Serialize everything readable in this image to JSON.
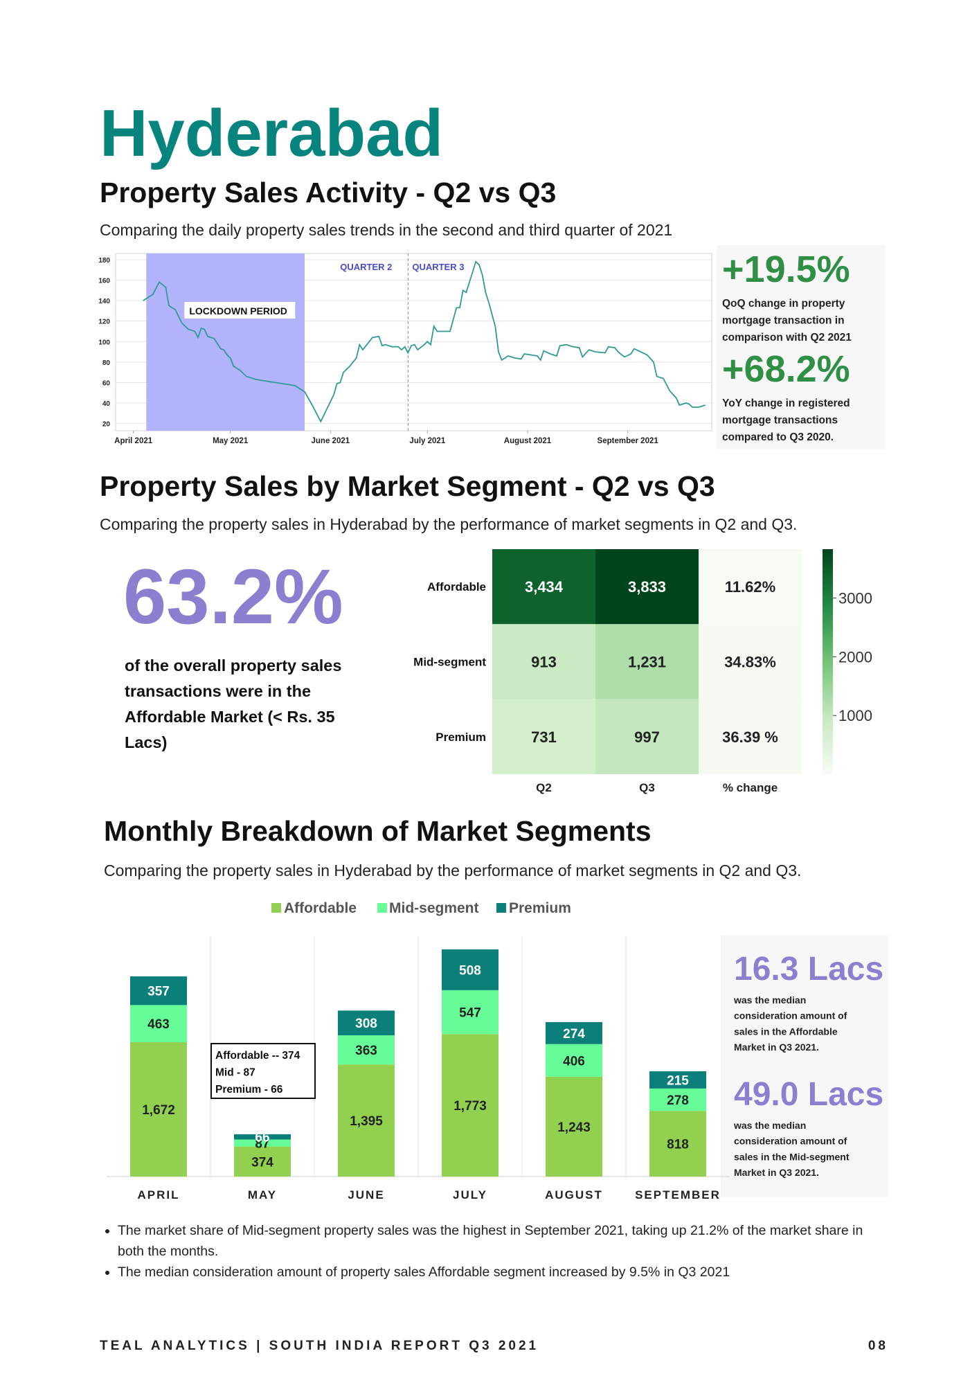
{
  "title": "Hyderabad",
  "activity": {
    "heading": "Property Sales Activity - Q2 vs Q3",
    "subtitle": "Comparing the daily property sales trends in the second and third quarter of 2021",
    "chart_data": {
      "type": "line",
      "x": [
        3,
        6,
        8,
        10,
        11,
        13,
        15,
        17,
        19,
        20,
        21,
        22,
        23,
        25,
        27,
        28,
        29,
        30,
        31,
        33,
        35,
        38,
        42,
        46,
        50,
        53,
        55,
        58,
        60,
        62,
        63,
        64,
        65,
        67,
        69,
        70,
        71,
        73,
        74,
        76,
        77,
        78,
        80,
        82,
        83,
        84,
        85,
        86,
        87,
        88,
        90,
        91,
        92,
        93,
        94,
        96,
        98,
        100,
        101,
        102,
        103,
        105,
        106,
        107,
        108,
        109,
        110,
        112,
        113,
        114,
        116,
        118,
        120,
        121,
        123,
        125,
        126,
        127,
        129,
        131,
        132,
        134,
        136,
        138,
        139,
        141,
        143,
        146,
        147,
        149,
        150,
        152,
        154,
        155,
        157,
        159,
        161,
        162,
        164,
        166,
        168,
        169,
        171,
        172,
        173,
        175,
        176,
        177
      ],
      "values": [
        140,
        146,
        158,
        153,
        135,
        131,
        118,
        112,
        110,
        104,
        113,
        112,
        105,
        103,
        93,
        92,
        87,
        84,
        76,
        72,
        66,
        63,
        61,
        59,
        57,
        51,
        40,
        22,
        35,
        48,
        59,
        60,
        70,
        76,
        84,
        97,
        92,
        100,
        104,
        105,
        96,
        97,
        95,
        95,
        92,
        95,
        89,
        96,
        97,
        92,
        97,
        100,
        97,
        115,
        110,
        110,
        110,
        133,
        133,
        150,
        148,
        168,
        178,
        175,
        165,
        148,
        138,
        115,
        90,
        82,
        86,
        84,
        83,
        88,
        87,
        86,
        82,
        91,
        88,
        86,
        96,
        97,
        95,
        94,
        85,
        92,
        90,
        89,
        95,
        94,
        90,
        85,
        88,
        93,
        90,
        87,
        80,
        66,
        64,
        52,
        45,
        38,
        40,
        39,
        36,
        36,
        37,
        38
      ],
      "color": "#2f9a94",
      "xlim": [
        -5.5,
        179
      ],
      "xticks": [
        {
          "value": 0,
          "label": "April 2021"
        },
        {
          "value": 30,
          "label": "May 2021"
        },
        {
          "value": 61,
          "label": "June 2021"
        },
        {
          "value": 91,
          "label": "July 2021"
        },
        {
          "value": 122,
          "label": "August 2021"
        },
        {
          "value": 153,
          "label": "September 2021"
        }
      ],
      "ylim": [
        13,
        186
      ],
      "yticks": [
        20,
        40,
        60,
        80,
        100,
        120,
        140,
        160,
        180
      ],
      "grid": true,
      "shaded_region": {
        "label": "LOCKDOWN  PERIOD",
        "start": 4,
        "end": 53,
        "color": "#b3b3fb"
      },
      "divider": {
        "x": 85,
        "left_label": "QUARTER 2",
        "right_label": "QUARTER 3"
      }
    },
    "stats": [
      {
        "value": "+19.5%",
        "lines": [
          "QoQ change in property",
          "mortgage transaction in",
          "comparison with Q2 2021"
        ]
      },
      {
        "value": "+68.2%",
        "lines": [
          "YoY change in registered",
          "mortgage transactions",
          "compared to Q3 2020."
        ]
      }
    ]
  },
  "segments": {
    "heading": "Property Sales by Market Segment - Q2 vs Q3",
    "subtitle": "Comparing the property sales in Hyderabad by the performance of market segments in Q2 and Q3.",
    "highlight": {
      "value": "63.2%",
      "lines": [
        "of the overall property sales",
        "transactions were in the",
        "Affordable Market (< Rs. 35",
        "Lacs)"
      ]
    },
    "chart_data": {
      "type": "heatmap",
      "rows": [
        "Affordable",
        "Mid-segment",
        "Premium"
      ],
      "columns": [
        "Q2",
        "Q3",
        "% change"
      ],
      "values": [
        [
          3434,
          3833,
          11.62
        ],
        [
          913,
          1231,
          34.83
        ],
        [
          731,
          997,
          36.39
        ]
      ],
      "value_labels": [
        [
          "3,434",
          "3,833",
          "11.62%"
        ],
        [
          "913",
          "1,231",
          "34.83%"
        ],
        [
          "731",
          "997",
          "36.39 %"
        ]
      ],
      "clim": [
        0,
        3833
      ],
      "colorbar_ticks": [
        1000,
        2000,
        3000
      ],
      "colormap": [
        "#f7fcf5",
        "#c7e9c0",
        "#74c476",
        "#238b45",
        "#00441b"
      ]
    }
  },
  "monthly": {
    "heading": "Monthly Breakdown of Market Segments",
    "subtitle": "Comparing the property sales in Hyderabad by the performance of market segments in Q2 and Q3.",
    "chart_data": {
      "type": "stacked_bar",
      "categories": [
        "APRIL",
        "MAY",
        "JUNE",
        "JULY",
        "AUGUST",
        "SEPTEMBER"
      ],
      "series": [
        {
          "name": "Affordable",
          "color": "#92d050",
          "values": [
            1672,
            374,
            1395,
            1773,
            1243,
            818
          ],
          "value_labels": [
            "1,672",
            "374",
            "1,395",
            "1,773",
            "1,243",
            "818"
          ]
        },
        {
          "name": "Mid-segment",
          "color": "#66fd98",
          "values": [
            463,
            87,
            363,
            547,
            406,
            278
          ]
        },
        {
          "name": "Premium",
          "color": "#0b7f7a",
          "values": [
            357,
            66,
            308,
            508,
            274,
            215
          ]
        }
      ],
      "legend": "top",
      "annotation": {
        "lines": [
          "Affordable -- 374",
          "Mid - 87",
          "Premium - 66"
        ]
      }
    },
    "stats": [
      {
        "value": "16.3 Lacs",
        "lines": [
          "was the median",
          "consideration amount of",
          "sales in the Affordable",
          "Market in Q3 2021."
        ]
      },
      {
        "value": "49.0 Lacs",
        "lines": [
          "was the median",
          "consideration amount of",
          "sales in the Mid-segment",
          "Market in Q3 2021."
        ]
      }
    ]
  },
  "notes": [
    "The market share of Mid-segment property sales was the highest in September 2021, taking up 21.2% of the market share in both the months.",
    "The median consideration amount of property sales Affordable segment increased by 9.5% in Q3 2021"
  ],
  "footer": {
    "left": "TEAL ANALYTICS | SOUTH INDIA REPORT Q3 2021",
    "page": "08"
  }
}
